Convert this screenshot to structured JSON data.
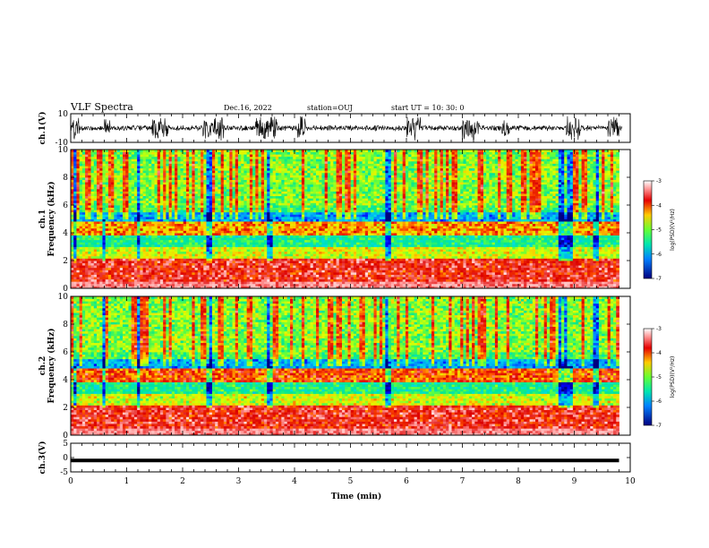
{
  "header": {
    "title": "VLF Spectra",
    "date": "Dec.16, 2022",
    "station": "station=OUJ",
    "start": "start  UT =   10: 30: 0"
  },
  "chart_data": [
    {
      "type": "line",
      "name": "ch1-waveform",
      "ylabel": "ch.1(V)",
      "ylim": [
        -10,
        10
      ],
      "yticks": [
        "10",
        "-10"
      ],
      "xlim": [
        0,
        10
      ],
      "burst_intervals_min": [
        [
          0.0,
          0.15
        ],
        [
          0.6,
          0.7
        ],
        [
          1.45,
          1.75
        ],
        [
          2.35,
          2.75
        ],
        [
          3.3,
          3.7
        ],
        [
          4.05,
          4.2
        ],
        [
          6.0,
          6.25
        ],
        [
          7.0,
          7.3
        ],
        [
          7.7,
          7.85
        ],
        [
          8.85,
          9.1
        ],
        [
          9.6,
          9.8
        ]
      ]
    },
    {
      "type": "heatmap",
      "name": "ch1-spectrogram",
      "ylabel": "ch.1\nFrequency  (kHz)",
      "ylim": [
        0,
        10
      ],
      "yticks": [
        "0",
        "2",
        "4",
        "6",
        "8",
        "10"
      ],
      "xlim": [
        0,
        9.8
      ],
      "colorbar": {
        "label": "log(PSD)(V²/Hz)",
        "range": [
          -7,
          -3
        ],
        "ticks": [
          "-3",
          "-4",
          "-5",
          "-6",
          "-7"
        ]
      }
    },
    {
      "type": "heatmap",
      "name": "ch2-spectrogram",
      "ylabel": "ch.2\nFrequency  (kHz)",
      "ylim": [
        0,
        10
      ],
      "yticks": [
        "0",
        "2",
        "4",
        "6",
        "8",
        "10"
      ],
      "xlim": [
        0,
        9.8
      ],
      "colorbar": {
        "label": "log(PSD)(V²/Hz)",
        "range": [
          -7,
          -3
        ],
        "ticks": [
          "-3",
          "-4",
          "-5",
          "-6",
          "-7"
        ]
      }
    },
    {
      "type": "line",
      "name": "ch3-waveform",
      "ylabel": "ch.3(V)",
      "ylim": [
        -5,
        5
      ],
      "yticks": [
        "5",
        "0",
        "-5"
      ],
      "xlim": [
        0,
        10
      ],
      "x": [
        0,
        9.8
      ],
      "y": [
        -1,
        -1
      ]
    }
  ],
  "x_axis": {
    "label": "Time  (min)",
    "ticks": [
      "0",
      "1",
      "2",
      "3",
      "4",
      "5",
      "6",
      "7",
      "8",
      "9",
      "10"
    ]
  }
}
